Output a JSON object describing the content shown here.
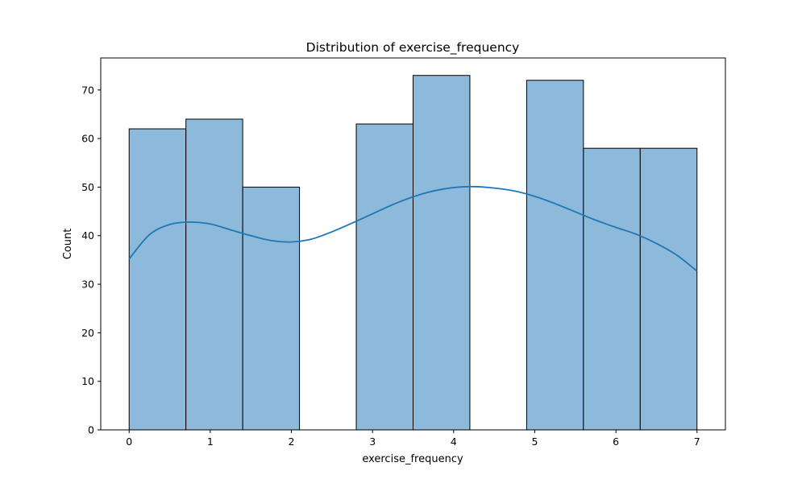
{
  "chart_data": {
    "type": "bar",
    "title": "Distribution of exercise_frequency",
    "xlabel": "exercise_frequency",
    "ylabel": "Count",
    "xlim": [
      -0.35,
      7.35
    ],
    "ylim": [
      0,
      76.6
    ],
    "xticks": [
      "0",
      "1",
      "2",
      "3",
      "4",
      "5",
      "6",
      "7"
    ],
    "yticks": [
      "0",
      "10",
      "20",
      "30",
      "40",
      "50",
      "60",
      "70"
    ],
    "bins": [
      {
        "x0": 0.0,
        "x1": 0.7,
        "count": 62
      },
      {
        "x0": 0.7,
        "x1": 1.4,
        "count": 64
      },
      {
        "x0": 1.4,
        "x1": 2.1,
        "count": 50
      },
      {
        "x0": 2.1,
        "x1": 2.8,
        "count": 0
      },
      {
        "x0": 2.8,
        "x1": 3.5,
        "count": 63
      },
      {
        "x0": 3.5,
        "x1": 4.2,
        "count": 73
      },
      {
        "x0": 4.2,
        "x1": 4.9,
        "count": 0
      },
      {
        "x0": 4.9,
        "x1": 5.6,
        "count": 72
      },
      {
        "x0": 5.6,
        "x1": 6.3,
        "count": 58
      },
      {
        "x0": 6.3,
        "x1": 7.0,
        "count": 58
      }
    ],
    "kde": {
      "x": [
        0.0,
        0.25,
        0.5,
        0.75,
        1.0,
        1.25,
        1.5,
        1.75,
        2.0,
        2.25,
        2.5,
        2.75,
        3.0,
        3.25,
        3.5,
        3.75,
        4.0,
        4.25,
        4.5,
        4.75,
        5.0,
        5.25,
        5.5,
        5.75,
        6.0,
        6.25,
        6.5,
        6.75,
        7.0
      ],
      "y": [
        35.2,
        40.2,
        42.3,
        42.8,
        42.4,
        41.2,
        40.0,
        39.0,
        38.7,
        39.3,
        40.8,
        42.6,
        44.5,
        46.4,
        48.0,
        49.2,
        49.9,
        50.1,
        49.8,
        49.2,
        48.1,
        46.6,
        44.9,
        43.2,
        41.7,
        40.3,
        38.4,
        36.0,
        32.7
      ]
    },
    "bar_color": "#8db9da",
    "bar_edge_color": "#000000",
    "kde_color": "#1f77b4",
    "grid": false
  }
}
